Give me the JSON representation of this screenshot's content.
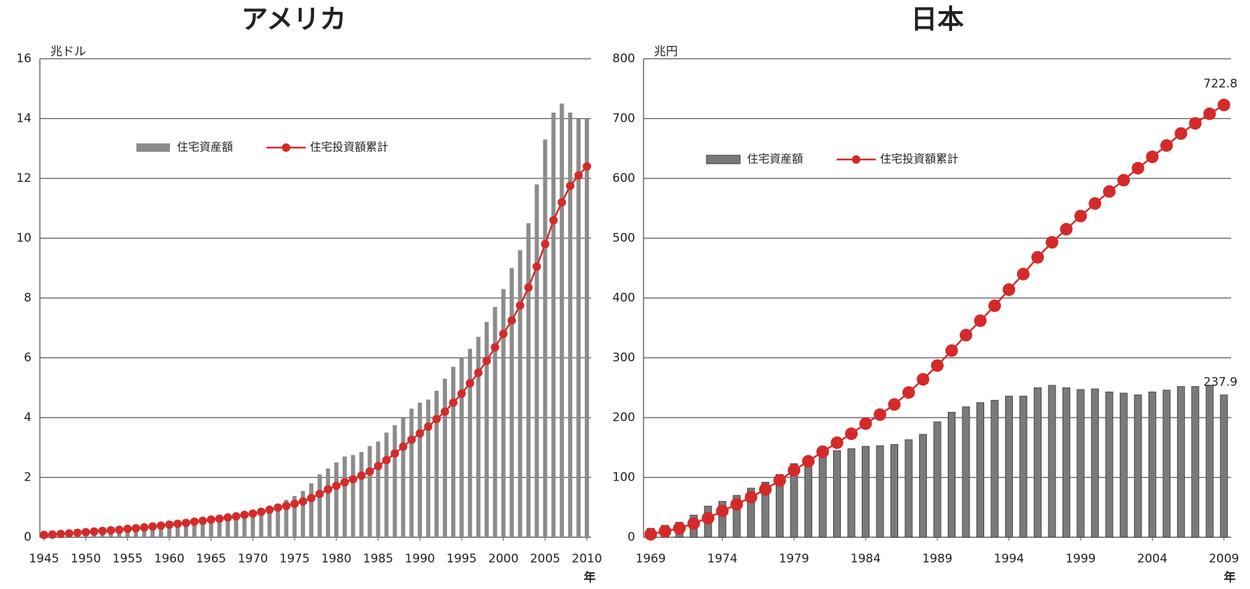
{
  "chart_data": [
    {
      "type": "bar_line",
      "title": "アメリカ",
      "y_unit": "兆ドル",
      "x_label": "年",
      "x": [
        1945,
        1946,
        1947,
        1948,
        1949,
        1950,
        1951,
        1952,
        1953,
        1954,
        1955,
        1956,
        1957,
        1958,
        1959,
        1960,
        1961,
        1962,
        1963,
        1964,
        1965,
        1966,
        1967,
        1968,
        1969,
        1970,
        1971,
        1972,
        1973,
        1974,
        1975,
        1976,
        1977,
        1978,
        1979,
        1980,
        1981,
        1982,
        1983,
        1984,
        1985,
        1986,
        1987,
        1988,
        1989,
        1990,
        1991,
        1992,
        1993,
        1994,
        1995,
        1996,
        1997,
        1998,
        1999,
        2000,
        2001,
        2002,
        2003,
        2004,
        2005,
        2006,
        2007,
        2008,
        2009,
        2010
      ],
      "xlim": [
        1944.5,
        2010.5
      ],
      "xticks": [
        1945,
        1950,
        1955,
        1960,
        1965,
        1970,
        1975,
        1980,
        1985,
        1990,
        1995,
        2000,
        2005,
        2010
      ],
      "ylim": [
        0,
        16
      ],
      "yticks": [
        0,
        2,
        4,
        6,
        8,
        10,
        12,
        14,
        16
      ],
      "grid": true,
      "series": [
        {
          "name": "住宅資産額",
          "kind": "bar",
          "color": "#8c8c8c",
          "values": [
            0.1,
            0.12,
            0.14,
            0.16,
            0.17,
            0.2,
            0.22,
            0.24,
            0.26,
            0.28,
            0.31,
            0.33,
            0.35,
            0.37,
            0.4,
            0.42,
            0.44,
            0.46,
            0.49,
            0.52,
            0.55,
            0.58,
            0.62,
            0.68,
            0.74,
            0.8,
            0.88,
            0.98,
            1.1,
            1.25,
            1.38,
            1.55,
            1.8,
            2.1,
            2.3,
            2.5,
            2.7,
            2.75,
            2.85,
            3.05,
            3.2,
            3.5,
            3.75,
            4.0,
            4.3,
            4.5,
            4.6,
            4.9,
            5.3,
            5.7,
            6.0,
            6.3,
            6.7,
            7.2,
            7.7,
            8.3,
            9.0,
            9.6,
            10.5,
            11.8,
            13.3,
            14.2,
            14.5,
            14.2,
            14.0,
            14.0
          ]
        },
        {
          "name": "住宅投資額累計",
          "kind": "line",
          "color": "#d42a2a",
          "values": [
            0.08,
            0.09,
            0.11,
            0.13,
            0.15,
            0.17,
            0.19,
            0.21,
            0.23,
            0.25,
            0.28,
            0.3,
            0.33,
            0.36,
            0.39,
            0.42,
            0.45,
            0.48,
            0.52,
            0.55,
            0.59,
            0.62,
            0.66,
            0.7,
            0.75,
            0.79,
            0.85,
            0.92,
            0.99,
            1.05,
            1.12,
            1.2,
            1.31,
            1.45,
            1.6,
            1.72,
            1.84,
            1.94,
            2.06,
            2.2,
            2.38,
            2.58,
            2.8,
            3.03,
            3.26,
            3.47,
            3.7,
            3.95,
            4.2,
            4.5,
            4.8,
            5.15,
            5.5,
            5.9,
            6.35,
            6.8,
            7.25,
            7.75,
            8.35,
            9.05,
            9.8,
            10.6,
            11.2,
            11.75,
            12.1,
            12.4
          ]
        }
      ]
    },
    {
      "type": "bar_line",
      "title": "日本",
      "y_unit": "兆円",
      "x_label": "年",
      "x": [
        1969,
        1970,
        1971,
        1972,
        1973,
        1974,
        1975,
        1976,
        1977,
        1978,
        1979,
        1980,
        1981,
        1982,
        1983,
        1984,
        1985,
        1986,
        1987,
        1988,
        1989,
        1990,
        1991,
        1992,
        1993,
        1994,
        1995,
        1996,
        1997,
        1998,
        1999,
        2000,
        2001,
        2002,
        2003,
        2004,
        2005,
        2006,
        2007,
        2008,
        2009
      ],
      "xlim": [
        1968.5,
        2009.5
      ],
      "xticks": [
        1969,
        1974,
        1979,
        1984,
        1989,
        1994,
        1999,
        2004,
        2009
      ],
      "ylim": [
        0,
        800
      ],
      "yticks": [
        0,
        100,
        200,
        300,
        400,
        500,
        600,
        700,
        800
      ],
      "grid": true,
      "series": [
        {
          "name": "住宅資産額",
          "kind": "bar",
          "color": "#7a7a7a",
          "values": [
            15,
            20,
            25,
            37,
            52,
            60,
            70,
            82,
            92,
            105,
            123,
            130,
            140,
            145,
            148,
            152,
            153,
            155,
            163,
            172,
            193,
            209,
            218,
            225,
            229,
            236,
            236,
            250,
            254,
            250,
            247,
            248,
            243,
            241,
            238,
            243,
            246,
            252,
            252,
            254,
            237.9
          ]
        },
        {
          "name": "住宅投資額累計",
          "kind": "line",
          "color": "#d42a2a",
          "values": [
            5,
            10,
            15,
            23,
            32,
            44,
            55,
            67,
            80,
            95,
            112,
            127,
            143,
            158,
            173,
            190,
            205,
            222,
            242,
            264,
            287,
            312,
            338,
            362,
            387,
            414,
            440,
            468,
            493,
            515,
            537,
            558,
            578,
            597,
            617,
            636,
            655,
            675,
            692,
            708,
            722.8
          ]
        }
      ]
    }
  ]
}
